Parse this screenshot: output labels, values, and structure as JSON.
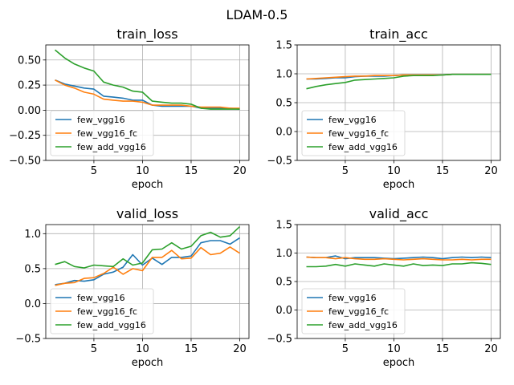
{
  "figure": {
    "suptitle": "LDAM-0.5"
  },
  "colors": {
    "few_vgg16": "#1f77b4",
    "few_vgg16_fc": "#ff7f0e",
    "few_add_vgg16": "#2ca02c",
    "grid": "#b0b0b0"
  },
  "chart_data": [
    {
      "type": "line",
      "title": "train_loss",
      "xlabel": "epoch",
      "ylabel": "",
      "xlim": [
        0.05,
        20.95
      ],
      "ylim": [
        -0.5,
        0.65
      ],
      "xticks": [
        5,
        10,
        15,
        20
      ],
      "yticks": [
        -0.5,
        -0.25,
        0.0,
        0.25,
        0.5
      ],
      "ytick_labels": [
        "−0.50",
        "−0.25",
        "0.00",
        "0.25",
        "0.50"
      ],
      "grid": true,
      "legend": "lower-left",
      "x": [
        1,
        2,
        3,
        4,
        5,
        6,
        7,
        8,
        9,
        10,
        11,
        12,
        13,
        14,
        15,
        16,
        17,
        18,
        19,
        20
      ],
      "series": [
        {
          "name": "few_vgg16",
          "color": "#1f77b4",
          "values": [
            0.3,
            0.26,
            0.24,
            0.22,
            0.21,
            0.14,
            0.13,
            0.12,
            0.1,
            0.1,
            0.05,
            0.04,
            0.04,
            0.04,
            0.04,
            0.02,
            0.02,
            0.02,
            0.02,
            0.01
          ]
        },
        {
          "name": "few_vgg16_fc",
          "color": "#ff7f0e",
          "values": [
            0.3,
            0.25,
            0.22,
            0.18,
            0.16,
            0.11,
            0.1,
            0.09,
            0.09,
            0.08,
            0.05,
            0.05,
            0.05,
            0.05,
            0.04,
            0.03,
            0.03,
            0.03,
            0.02,
            0.02
          ]
        },
        {
          "name": "few_add_vgg16",
          "color": "#2ca02c",
          "values": [
            0.6,
            0.52,
            0.46,
            0.42,
            0.39,
            0.28,
            0.25,
            0.23,
            0.19,
            0.18,
            0.09,
            0.08,
            0.07,
            0.07,
            0.06,
            0.02,
            0.01,
            0.01,
            0.01,
            0.01
          ]
        }
      ]
    },
    {
      "type": "line",
      "title": "train_acc",
      "xlabel": "epoch",
      "ylabel": "",
      "xlim": [
        0.05,
        20.95
      ],
      "ylim": [
        -0.5,
        1.5
      ],
      "xticks": [
        5,
        10,
        15,
        20
      ],
      "yticks": [
        -0.5,
        0.0,
        0.5,
        1.0,
        1.5
      ],
      "ytick_labels": [
        "−0.5",
        "0.0",
        "0.5",
        "1.0",
        "1.5"
      ],
      "grid": true,
      "legend": "lower-left",
      "x": [
        1,
        2,
        3,
        4,
        5,
        6,
        7,
        8,
        9,
        10,
        11,
        12,
        13,
        14,
        15,
        16,
        17,
        18,
        19,
        20
      ],
      "series": [
        {
          "name": "few_vgg16",
          "color": "#1f77b4",
          "values": [
            0.91,
            0.91,
            0.92,
            0.93,
            0.93,
            0.95,
            0.96,
            0.96,
            0.96,
            0.97,
            0.98,
            0.98,
            0.98,
            0.98,
            0.98,
            0.99,
            0.99,
            0.99,
            0.99,
            0.99
          ]
        },
        {
          "name": "few_vgg16_fc",
          "color": "#ff7f0e",
          "values": [
            0.91,
            0.92,
            0.93,
            0.94,
            0.95,
            0.96,
            0.96,
            0.97,
            0.97,
            0.97,
            0.98,
            0.98,
            0.98,
            0.98,
            0.98,
            0.99,
            0.99,
            0.99,
            0.99,
            0.99
          ]
        },
        {
          "name": "few_add_vgg16",
          "color": "#2ca02c",
          "values": [
            0.74,
            0.78,
            0.81,
            0.83,
            0.85,
            0.89,
            0.9,
            0.91,
            0.92,
            0.93,
            0.96,
            0.97,
            0.97,
            0.97,
            0.98,
            0.99,
            0.99,
            0.99,
            0.99,
            0.99
          ]
        }
      ]
    },
    {
      "type": "line",
      "title": "valid_loss",
      "xlabel": "epoch",
      "ylabel": "",
      "xlim": [
        0.05,
        20.95
      ],
      "ylim": [
        -0.5,
        1.13
      ],
      "xticks": [
        5,
        10,
        15,
        20
      ],
      "yticks": [
        -0.5,
        0.0,
        0.5,
        1.0
      ],
      "ytick_labels": [
        "−0.5",
        "0.0",
        "0.5",
        "1.0"
      ],
      "grid": true,
      "legend": "lower-left",
      "x": [
        1,
        2,
        3,
        4,
        5,
        6,
        7,
        8,
        9,
        10,
        11,
        12,
        13,
        14,
        15,
        16,
        17,
        18,
        19,
        20
      ],
      "series": [
        {
          "name": "few_vgg16",
          "color": "#1f77b4",
          "values": [
            0.27,
            0.29,
            0.33,
            0.32,
            0.34,
            0.42,
            0.45,
            0.52,
            0.7,
            0.55,
            0.65,
            0.56,
            0.66,
            0.66,
            0.68,
            0.87,
            0.9,
            0.9,
            0.85,
            0.94
          ]
        },
        {
          "name": "few_vgg16_fc",
          "color": "#ff7f0e",
          "values": [
            0.26,
            0.29,
            0.3,
            0.36,
            0.37,
            0.43,
            0.52,
            0.42,
            0.5,
            0.47,
            0.66,
            0.66,
            0.76,
            0.64,
            0.65,
            0.8,
            0.7,
            0.72,
            0.81,
            0.72
          ]
        },
        {
          "name": "few_add_vgg16",
          "color": "#2ca02c",
          "values": [
            0.56,
            0.6,
            0.53,
            0.51,
            0.55,
            0.54,
            0.53,
            0.64,
            0.55,
            0.58,
            0.77,
            0.78,
            0.87,
            0.78,
            0.82,
            0.97,
            1.02,
            0.95,
            0.97,
            1.1
          ]
        }
      ]
    },
    {
      "type": "line",
      "title": "valid_acc",
      "xlabel": "epoch",
      "ylabel": "",
      "xlim": [
        0.05,
        20.95
      ],
      "ylim": [
        -0.5,
        1.5
      ],
      "xticks": [
        5,
        10,
        15,
        20
      ],
      "yticks": [
        -0.5,
        0.0,
        0.5,
        1.0,
        1.5
      ],
      "ytick_labels": [
        "−0.5",
        "0.0",
        "0.5",
        "1.0",
        "1.5"
      ],
      "grid": true,
      "legend": "lower-left",
      "x": [
        1,
        2,
        3,
        4,
        5,
        6,
        7,
        8,
        9,
        10,
        11,
        12,
        13,
        14,
        15,
        16,
        17,
        18,
        19,
        20
      ],
      "series": [
        {
          "name": "few_vgg16",
          "color": "#1f77b4",
          "values": [
            0.93,
            0.92,
            0.92,
            0.95,
            0.9,
            0.92,
            0.92,
            0.92,
            0.91,
            0.9,
            0.91,
            0.92,
            0.93,
            0.92,
            0.9,
            0.92,
            0.93,
            0.92,
            0.93,
            0.92
          ]
        },
        {
          "name": "few_vgg16_fc",
          "color": "#ff7f0e",
          "values": [
            0.93,
            0.92,
            0.92,
            0.9,
            0.92,
            0.9,
            0.89,
            0.89,
            0.9,
            0.89,
            0.88,
            0.89,
            0.9,
            0.89,
            0.88,
            0.88,
            0.89,
            0.88,
            0.89,
            0.89
          ]
        },
        {
          "name": "few_add_vgg16",
          "color": "#2ca02c",
          "values": [
            0.76,
            0.76,
            0.77,
            0.8,
            0.77,
            0.81,
            0.79,
            0.77,
            0.81,
            0.79,
            0.77,
            0.81,
            0.78,
            0.79,
            0.78,
            0.81,
            0.81,
            0.83,
            0.82,
            0.8
          ]
        }
      ]
    }
  ]
}
